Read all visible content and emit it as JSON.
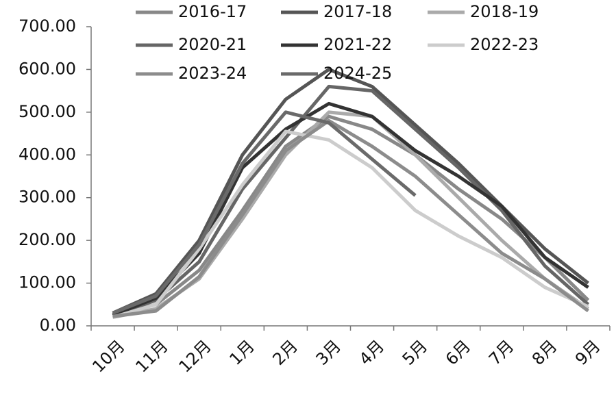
{
  "chart_data": {
    "type": "line",
    "categories": [
      "10月",
      "11月",
      "12月",
      "1月",
      "2月",
      "3月",
      "4月",
      "5月",
      "6月",
      "7月",
      "8月",
      "9月"
    ],
    "series": [
      {
        "name": "2016-17",
        "color": "#888888",
        "values": [
          25,
          50,
          130,
          270,
          420,
          490,
          460,
          400,
          320,
          250,
          160,
          60
        ]
      },
      {
        "name": "2017-18",
        "color": "#555555",
        "values": [
          30,
          75,
          200,
          400,
          530,
          600,
          560,
          470,
          380,
          280,
          180,
          100
        ]
      },
      {
        "name": "2018-19",
        "color": "#aaaaaa",
        "values": [
          20,
          40,
          110,
          250,
          400,
          500,
          490,
          400,
          300,
          200,
          110,
          40
        ]
      },
      {
        "name": "2020-21",
        "color": "#666666",
        "values": [
          25,
          60,
          150,
          320,
          440,
          560,
          550,
          460,
          370,
          270,
          140,
          50
        ]
      },
      {
        "name": "2021-22",
        "color": "#333333",
        "values": [
          25,
          65,
          170,
          370,
          460,
          520,
          490,
          410,
          350,
          280,
          160,
          90
        ]
      },
      {
        "name": "2022-23",
        "color": "#cccccc",
        "values": [
          20,
          50,
          180,
          330,
          455,
          435,
          370,
          270,
          210,
          160,
          90,
          45
        ]
      },
      {
        "name": "2023-24",
        "color": "#8c8c8c",
        "values": [
          22,
          35,
          115,
          260,
          410,
          480,
          420,
          350,
          260,
          170,
          110,
          35
        ]
      },
      {
        "name": "2024-25",
        "color": "#6a6a6a",
        "values": [
          30,
          70,
          190,
          380,
          500,
          475,
          390,
          305,
          null,
          null,
          null,
          null
        ]
      }
    ],
    "ylim": [
      0,
      700
    ],
    "yticks": [
      {
        "value": 0,
        "label": "0.00"
      },
      {
        "value": 100,
        "label": "100.00"
      },
      {
        "value": 200,
        "label": "200.00"
      },
      {
        "value": 300,
        "label": "300.00"
      },
      {
        "value": 400,
        "label": "400.00"
      },
      {
        "value": 500,
        "label": "500.00"
      },
      {
        "value": 600,
        "label": "600.00"
      },
      {
        "value": 700,
        "label": "700.00"
      }
    ],
    "legend": "top"
  }
}
